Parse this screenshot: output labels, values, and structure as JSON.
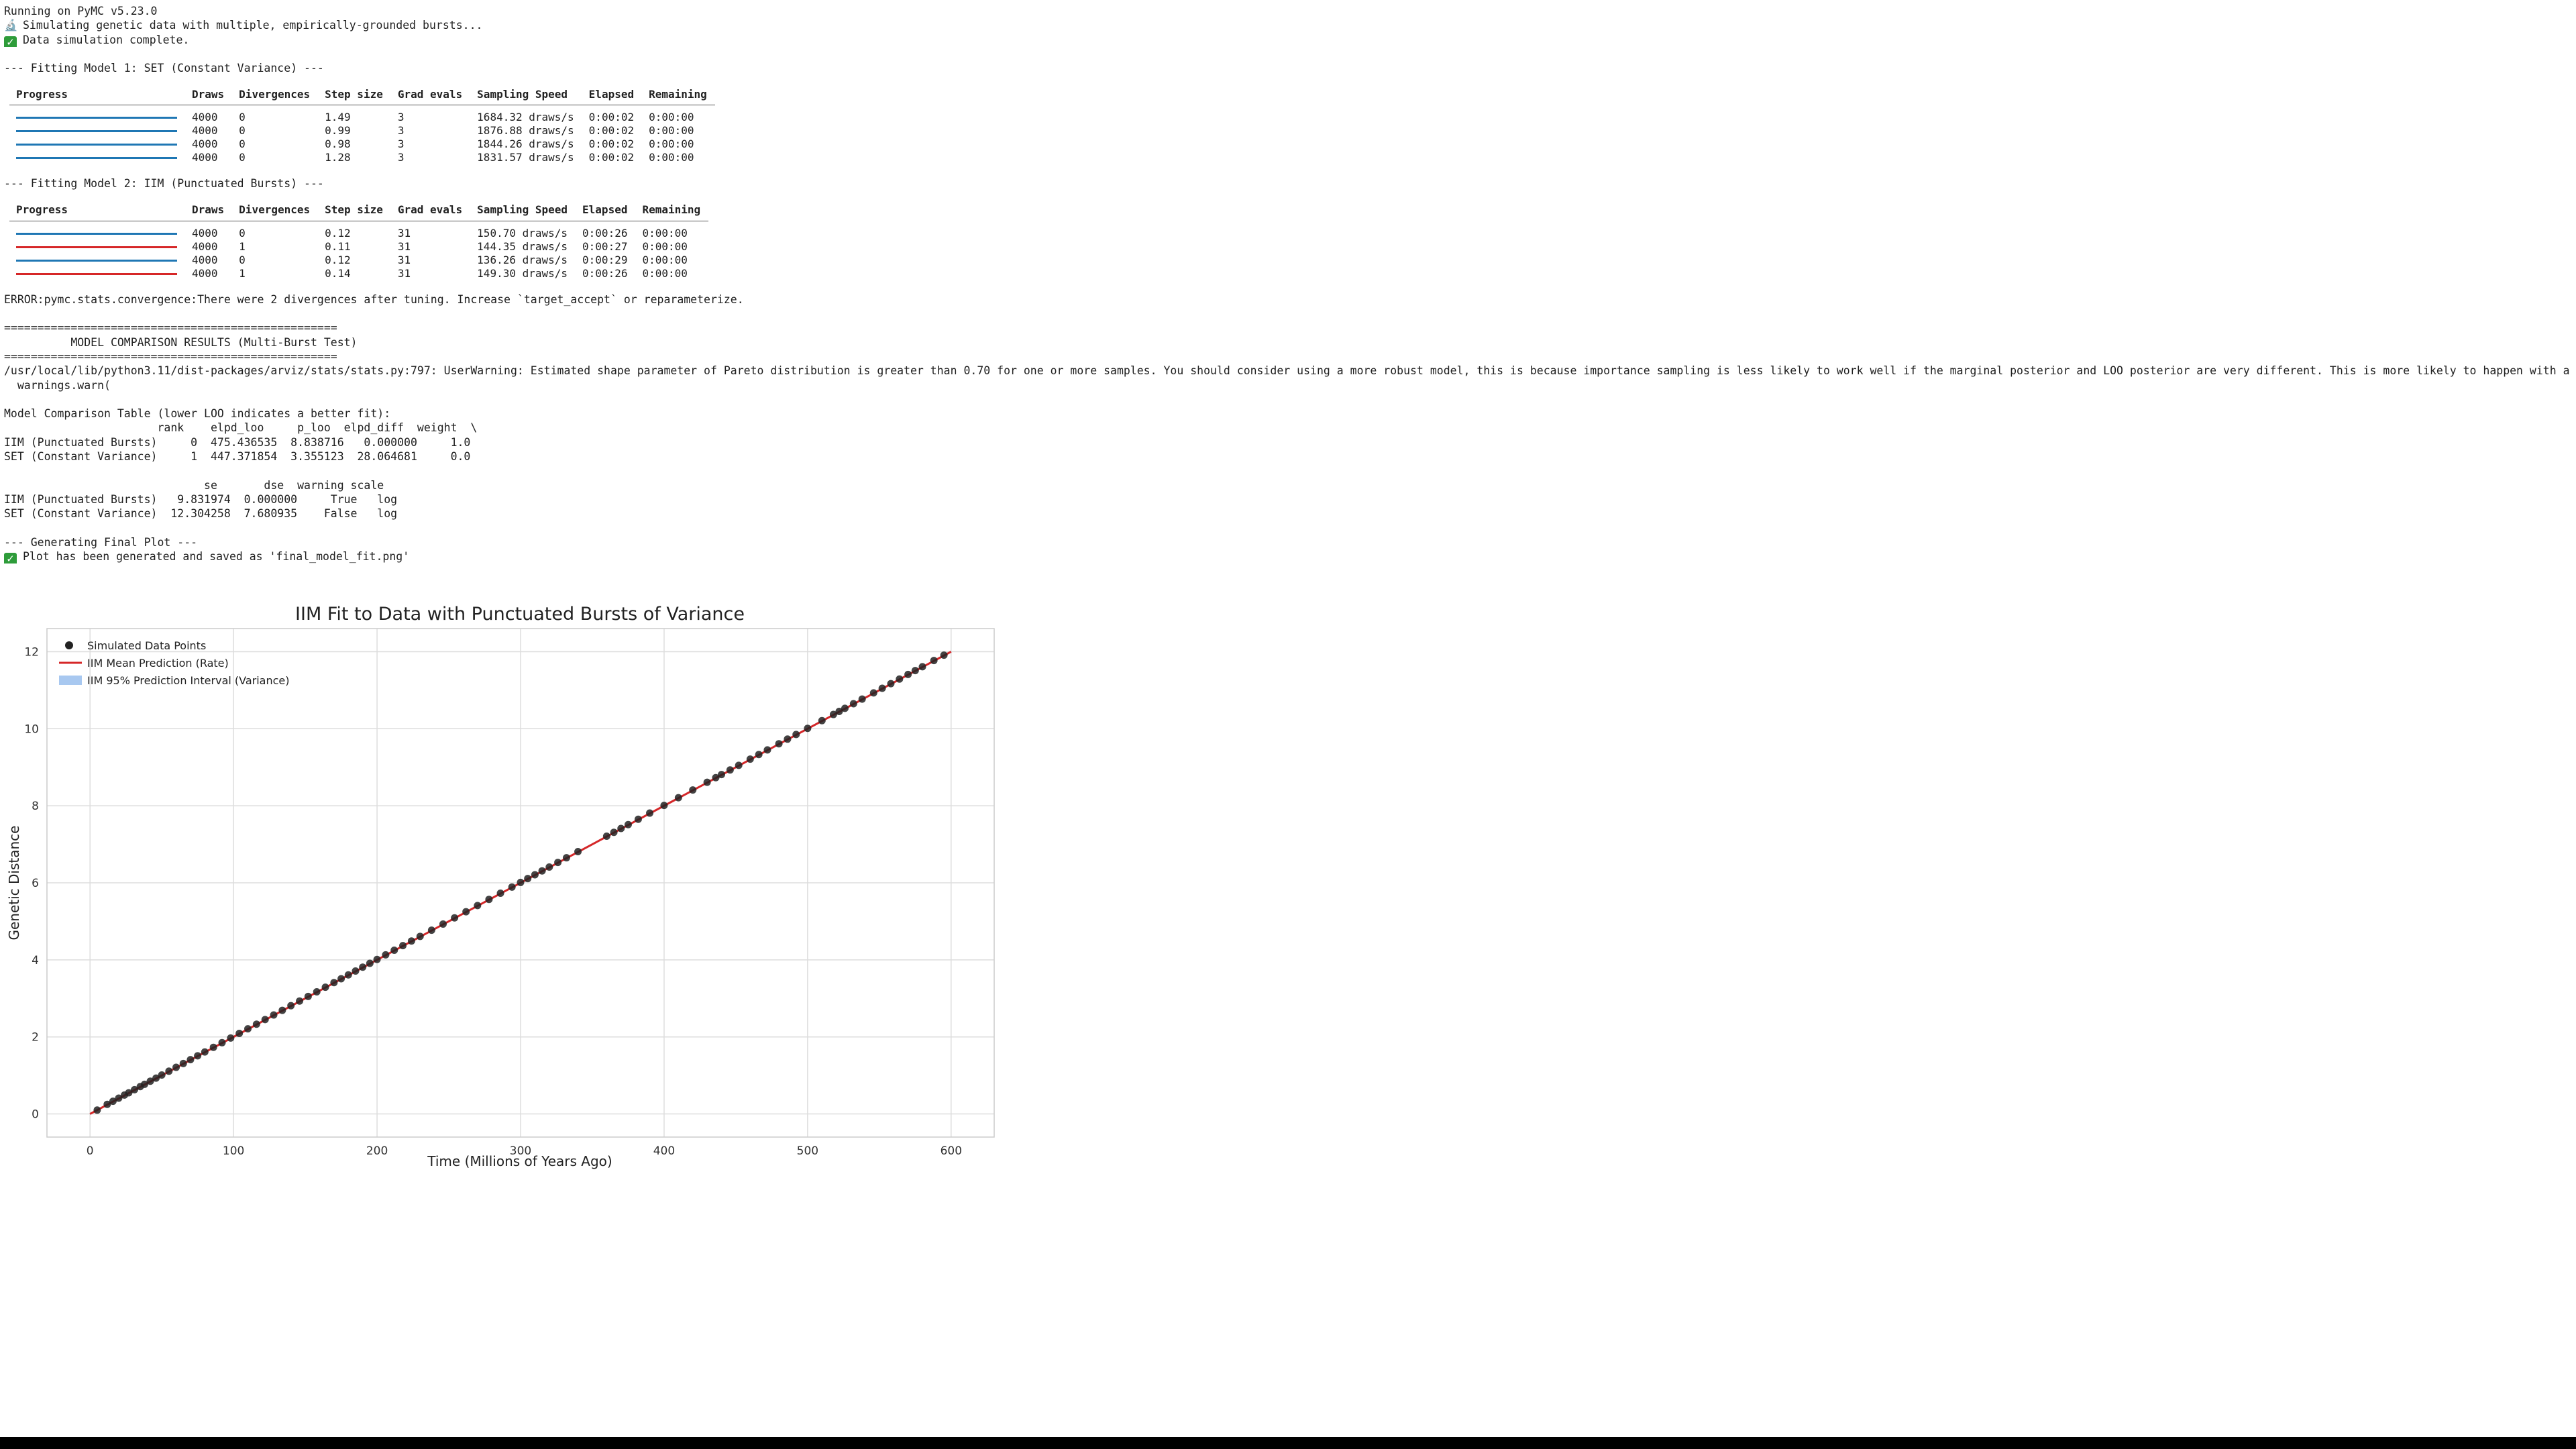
{
  "console": {
    "header": "Running on PyMC v5.23.0",
    "sim_line": "Simulating genetic data with multiple, empirically-grounded bursts...",
    "sim_icon": "microscope-icon",
    "sim_done": "Data simulation complete.",
    "model1_heading": "--- Fitting Model 1: SET (Constant Variance) ---",
    "model2_heading": "--- Fitting Model 2: IIM (Punctuated Bursts) ---",
    "error_line": "ERROR:pymc.stats.convergence:There were 2 divergences after tuning. Increase `target_accept` or reparameterize.",
    "rule": "==================================================",
    "results_title": "          MODEL COMPARISON RESULTS (Multi-Burst Test)",
    "warning_line": "/usr/local/lib/python3.11/dist-packages/arviz/stats/stats.py:797: UserWarning: Estimated shape parameter of Pareto distribution is greater than 0.70 for one or more samples. You should consider using a more robust model, this is because importance sampling is less likely to work well if the marginal posterior and LOO posterior are very different. This is more likely to happen with a non-robust model and highly influential observations.",
    "warning_line2": "  warnings.warn(",
    "cmp_title": "Model Comparison Table (lower LOO indicates a better fit):",
    "cmp_h1": "                       rank    elpd_loo     p_loo  elpd_diff  weight  \\",
    "cmp_r1": "IIM (Punctuated Bursts)     0  475.436535  8.838716   0.000000     1.0",
    "cmp_r2": "SET (Constant Variance)     1  447.371854  3.355123  28.064681     0.0",
    "cmp_h2": "                              se       dse  warning scale",
    "cmp_r3": "IIM (Punctuated Bursts)   9.831974  0.000000     True   log",
    "cmp_r4": "SET (Constant Variance)  12.304258  7.680935    False   log",
    "plot_heading": "--- Generating Final Plot ---",
    "plot_saved": "Plot has been generated and saved as 'final_model_fit.png'"
  },
  "progress_headers": [
    "Progress",
    "Draws",
    "Divergences",
    "Step size",
    "Grad evals",
    "Sampling Speed",
    "Elapsed",
    "Remaining"
  ],
  "model1_rows": [
    {
      "bar_color": "#1f77b4",
      "draws": "4000",
      "div": "0",
      "step": "1.49",
      "grad": "3",
      "speed": "1684.32 draws/s",
      "elapsed": "0:00:02",
      "remaining": "0:00:00"
    },
    {
      "bar_color": "#1f77b4",
      "draws": "4000",
      "div": "0",
      "step": "0.99",
      "grad": "3",
      "speed": "1876.88 draws/s",
      "elapsed": "0:00:02",
      "remaining": "0:00:00"
    },
    {
      "bar_color": "#1f77b4",
      "draws": "4000",
      "div": "0",
      "step": "0.98",
      "grad": "3",
      "speed": "1844.26 draws/s",
      "elapsed": "0:00:02",
      "remaining": "0:00:00"
    },
    {
      "bar_color": "#1f77b4",
      "draws": "4000",
      "div": "0",
      "step": "1.28",
      "grad": "3",
      "speed": "1831.57 draws/s",
      "elapsed": "0:00:02",
      "remaining": "0:00:00"
    }
  ],
  "model2_rows": [
    {
      "bar_color": "#1f77b4",
      "draws": "4000",
      "div": "0",
      "step": "0.12",
      "grad": "31",
      "speed": "150.70 draws/s",
      "elapsed": "0:00:26",
      "remaining": "0:00:00"
    },
    {
      "bar_color": "#d62728",
      "draws": "4000",
      "div": "1",
      "step": "0.11",
      "grad": "31",
      "speed": "144.35 draws/s",
      "elapsed": "0:00:27",
      "remaining": "0:00:00"
    },
    {
      "bar_color": "#1f77b4",
      "draws": "4000",
      "div": "0",
      "step": "0.12",
      "grad": "31",
      "speed": "136.26 draws/s",
      "elapsed": "0:00:29",
      "remaining": "0:00:00"
    },
    {
      "bar_color": "#d62728",
      "draws": "4000",
      "div": "1",
      "step": "0.14",
      "grad": "31",
      "speed": "149.30 draws/s",
      "elapsed": "0:00:26",
      "remaining": "0:00:00"
    }
  ],
  "chart_data": {
    "type": "scatter",
    "title": "IIM Fit to Data with Punctuated Bursts of Variance",
    "xlabel": "Time (Millions of Years Ago)",
    "ylabel": "Genetic Distance",
    "xlim": [
      -30,
      630
    ],
    "ylim": [
      -0.6,
      12.6
    ],
    "xticks": [
      0,
      100,
      200,
      300,
      400,
      500,
      600
    ],
    "yticks": [
      0,
      2,
      4,
      6,
      8,
      10,
      12
    ],
    "grid": true,
    "legend_position": "top-left",
    "series": [
      {
        "name": "Simulated Data Points",
        "kind": "points",
        "color": "#222222",
        "x": [
          5,
          12,
          16,
          20,
          24,
          27,
          31,
          35,
          38,
          42,
          46,
          50,
          55,
          60,
          65,
          70,
          75,
          80,
          86,
          92,
          98,
          104,
          110,
          116,
          122,
          128,
          134,
          140,
          146,
          152,
          158,
          164,
          170,
          175,
          180,
          185,
          190,
          195,
          200,
          206,
          212,
          218,
          224,
          230,
          238,
          246,
          254,
          262,
          270,
          278,
          286,
          294,
          300,
          305,
          310,
          315,
          320,
          326,
          332,
          340,
          360,
          365,
          370,
          375,
          382,
          390,
          400,
          410,
          420,
          430,
          436,
          440,
          446,
          452,
          460,
          466,
          472,
          480,
          486,
          492,
          500,
          510,
          518,
          522,
          526,
          532,
          538,
          546,
          552,
          558,
          564,
          570,
          575,
          580,
          588,
          595
        ],
        "y": [
          0.1,
          0.25,
          0.33,
          0.41,
          0.49,
          0.55,
          0.63,
          0.71,
          0.77,
          0.85,
          0.93,
          1.01,
          1.11,
          1.21,
          1.31,
          1.41,
          1.51,
          1.61,
          1.73,
          1.85,
          1.97,
          2.09,
          2.21,
          2.33,
          2.45,
          2.57,
          2.69,
          2.81,
          2.93,
          3.05,
          3.17,
          3.29,
          3.41,
          3.51,
          3.61,
          3.71,
          3.81,
          3.91,
          4.01,
          4.13,
          4.25,
          4.37,
          4.49,
          4.61,
          4.77,
          4.93,
          5.09,
          5.25,
          5.41,
          5.57,
          5.73,
          5.89,
          6.01,
          6.11,
          6.21,
          6.31,
          6.41,
          6.53,
          6.65,
          6.81,
          7.21,
          7.31,
          7.41,
          7.51,
          7.65,
          7.81,
          8.01,
          8.21,
          8.41,
          8.61,
          8.73,
          8.81,
          8.93,
          9.05,
          9.21,
          9.33,
          9.45,
          9.61,
          9.73,
          9.85,
          10.01,
          10.21,
          10.37,
          10.45,
          10.53,
          10.65,
          10.77,
          10.93,
          11.05,
          11.17,
          11.29,
          11.41,
          11.51,
          11.61,
          11.77,
          11.91
        ]
      },
      {
        "name": "IIM Mean Prediction (Rate)",
        "kind": "line",
        "color": "#d62728",
        "x": [
          0,
          600
        ],
        "y": [
          0.0,
          12.0
        ]
      },
      {
        "name": "IIM 95% Prediction Interval (Variance)",
        "kind": "band",
        "color": "#a8c8f0",
        "x": [
          0,
          600
        ],
        "lower": [
          -0.03,
          11.97
        ],
        "upper": [
          0.03,
          12.03
        ]
      }
    ]
  }
}
